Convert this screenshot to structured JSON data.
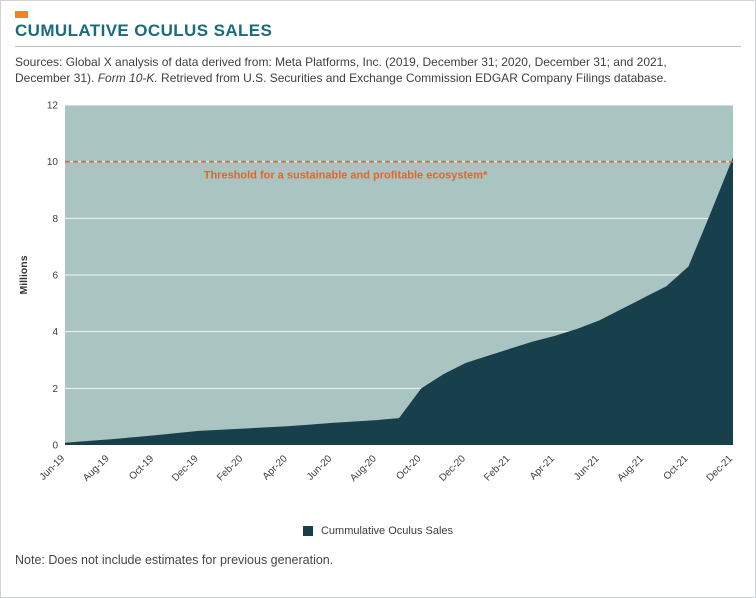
{
  "colors": {
    "accent_orange": "#f58220",
    "title_teal": "#1a6b7b",
    "body_text": "#3f3f3f"
  },
  "header": {
    "title": "CUMULATIVE OCULUS SALES",
    "sources_before": "Sources: Global X analysis of data derived from: Meta Platforms, Inc. (2019, December 31; 2020, December 31; and 2021, December 31). ",
    "sources_italic": "Form 10-K.",
    "sources_after": " Retrieved from U.S. Securities and Exchange Commission EDGAR Company Filings database."
  },
  "chart_data": {
    "type": "area",
    "title": "Cumulative Oculus Sales",
    "ylabel": "Millions",
    "ylim": [
      0,
      12
    ],
    "yticks": [
      0,
      2,
      4,
      6,
      8,
      10,
      12
    ],
    "grid": true,
    "legend_position": "bottom",
    "x": [
      "Jun-19",
      "Jul-19",
      "Aug-19",
      "Sep-19",
      "Oct-19",
      "Nov-19",
      "Dec-19",
      "Jan-20",
      "Feb-20",
      "Mar-20",
      "Apr-20",
      "May-20",
      "Jun-20",
      "Jul-20",
      "Aug-20",
      "Sep-20",
      "Oct-20",
      "Nov-20",
      "Dec-20",
      "Jan-21",
      "Feb-21",
      "Mar-21",
      "Apr-21",
      "May-21",
      "Jun-21",
      "Jul-21",
      "Aug-21",
      "Sep-21",
      "Oct-21",
      "Nov-21",
      "Dec-21"
    ],
    "tick_every": 2,
    "series": [
      {
        "name": "Cummulative Oculus Sales",
        "values": [
          0.08,
          0.14,
          0.2,
          0.27,
          0.34,
          0.42,
          0.5,
          0.54,
          0.58,
          0.62,
          0.66,
          0.72,
          0.78,
          0.83,
          0.88,
          0.95,
          2.0,
          2.5,
          2.9,
          3.15,
          3.4,
          3.65,
          3.85,
          4.1,
          4.4,
          4.8,
          5.2,
          5.6,
          6.3,
          8.2,
          10.15
        ]
      }
    ],
    "threshold": {
      "value": 10,
      "label": "Threshold for a sustainable and profitable ecosystem*"
    },
    "colors": {
      "plot_bg": "#a9c4c1",
      "area": "#173f4c",
      "threshold": "#e8622d",
      "grid": "#ffffff"
    }
  },
  "legend": {
    "label": "Cummulative Oculus Sales"
  },
  "note": "Note: Does not include estimates for previous generation."
}
